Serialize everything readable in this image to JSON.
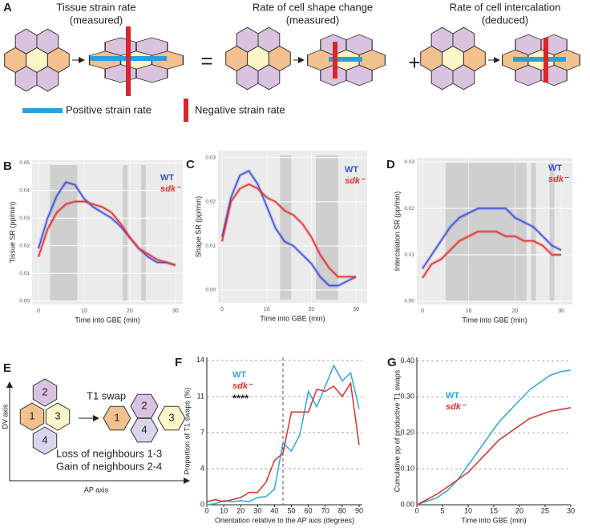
{
  "panel_A": {
    "label": "A",
    "tissue": [
      "Tissue strain rate",
      "(measured)"
    ],
    "shape": [
      "Rate of cell shape change",
      "(measured)"
    ],
    "intercalation": [
      "Rate of cell intercalation",
      "(deduced)"
    ],
    "equals": "=",
    "plus": "+",
    "positive": "Positive strain rate",
    "negative": "Negative strain rate"
  },
  "panel_E": {
    "label": "E",
    "t1": "T1 swap",
    "dv": "DV axis",
    "ap": "AP axis",
    "loss": "Loss of neighbours 1-3",
    "gain": "Gain of neighbours 2-4",
    "cells": [
      "1",
      "2",
      "3",
      "4"
    ]
  },
  "chart_data": [
    {
      "type": "line",
      "label": "B",
      "ylabel": "Tissue SR (pp/min)",
      "xlabel": "Time into GBE (min)",
      "x": [
        0,
        2,
        4,
        6,
        8,
        10,
        12,
        14,
        16,
        18,
        20,
        22,
        24,
        26,
        28,
        30
      ],
      "series": [
        {
          "name": "WT",
          "color": "#3b4fe0",
          "values": [
            0.019,
            0.03,
            0.038,
            0.043,
            0.042,
            0.037,
            0.034,
            0.032,
            0.03,
            0.027,
            0.023,
            0.019,
            0.016,
            0.014,
            0.014,
            0.013
          ]
        },
        {
          "name": "sdk⁻",
          "color": "#e5302b",
          "values": [
            0.016,
            0.026,
            0.032,
            0.035,
            0.036,
            0.036,
            0.035,
            0.034,
            0.032,
            0.028,
            0.023,
            0.019,
            0.017,
            0.015,
            0.014,
            0.013
          ]
        }
      ],
      "xlim": [
        -1.4,
        31.6
      ],
      "ylim": [
        -0.0012,
        0.0509
      ],
      "xticks": [
        0,
        10,
        20,
        30
      ],
      "yticks": [
        {
          "value": 0,
          "label": "0.00"
        },
        {
          "value": 0.01,
          "label": "0.01"
        },
        {
          "value": 0.02,
          "label": "0.02"
        },
        {
          "value": 0.03,
          "label": "0.03"
        },
        {
          "value": 0.04,
          "label": "0.04"
        },
        {
          "value": 0.05,
          "label": "0.05"
        }
      ],
      "shaded_regions": [
        [
          2.5,
          8.5
        ],
        [
          18.5,
          19.5
        ],
        [
          22.5,
          23.5
        ]
      ],
      "grid": true
    },
    {
      "type": "line",
      "label": "C",
      "ylabel": "Shape SR (pp/min)",
      "xlabel": "Time into GBE (min)",
      "x": [
        0,
        2,
        4,
        6,
        8,
        10,
        12,
        14,
        16,
        18,
        20,
        22,
        24,
        26,
        28,
        30
      ],
      "series": [
        {
          "name": "WT",
          "color": "#3b4fe0",
          "values": [
            0.012,
            0.021,
            0.026,
            0.027,
            0.024,
            0.019,
            0.014,
            0.011,
            0.01,
            0.008,
            0.006,
            0.003,
            0.001,
            0.001,
            0.002,
            0.003
          ]
        },
        {
          "name": "sdk⁻",
          "color": "#e5302b",
          "values": [
            0.011,
            0.02,
            0.023,
            0.024,
            0.023,
            0.021,
            0.02,
            0.018,
            0.017,
            0.015,
            0.012,
            0.008,
            0.005,
            0.003,
            0.003,
            0.003
          ]
        }
      ],
      "xlim": [
        -0.9,
        32.5
      ],
      "ylim": [
        -0.0029,
        0.0316
      ],
      "xticks": [
        0,
        10,
        20,
        30
      ],
      "yticks": [
        {
          "value": 0,
          "label": "0.00"
        },
        {
          "value": 0.01,
          "label": "0.01"
        },
        {
          "value": 0.02,
          "label": "0.02"
        },
        {
          "value": 0.03,
          "label": "0.03"
        }
      ],
      "shaded_regions": [
        [
          13,
          15.5
        ],
        [
          21,
          26
        ]
      ],
      "grid": true
    },
    {
      "type": "line",
      "label": "D",
      "ylabel": "Intercalation SR (pp/min)",
      "xlabel": "Time into GBE (min)",
      "x": [
        0,
        2,
        4,
        6,
        8,
        10,
        12,
        14,
        16,
        18,
        20,
        22,
        24,
        26,
        28,
        30
      ],
      "series": [
        {
          "name": "WT",
          "color": "#3b4fe0",
          "values": [
            0.007,
            0.01,
            0.013,
            0.016,
            0.018,
            0.019,
            0.02,
            0.02,
            0.02,
            0.02,
            0.018,
            0.017,
            0.016,
            0.014,
            0.012,
            0.011
          ]
        },
        {
          "name": "sdk⁻",
          "color": "#e5302b",
          "values": [
            0.005,
            0.008,
            0.009,
            0.011,
            0.013,
            0.014,
            0.015,
            0.015,
            0.015,
            0.014,
            0.014,
            0.013,
            0.013,
            0.012,
            0.01,
            0.01
          ]
        }
      ],
      "xlim": [
        -1.2,
        32.4
      ],
      "ylim": [
        -0.0007,
        0.0309
      ],
      "xticks": [
        0,
        10,
        20,
        30
      ],
      "yticks": [
        {
          "value": 0,
          "label": "0.00"
        },
        {
          "value": 0.01,
          "label": "0.01"
        },
        {
          "value": 0.02,
          "label": "0.02"
        },
        {
          "value": 0.03,
          "label": "0.03"
        }
      ],
      "shaded_regions": [
        [
          5,
          22.5
        ],
        [
          23.5,
          24.5
        ],
        [
          27.5,
          28.5
        ]
      ],
      "grid": true
    },
    {
      "type": "line",
      "label": "F",
      "ylabel": "Proportion of T1 swaps  (%)",
      "xlabel": "Orientation  relative to the AP axis (degrees)",
      "x": [
        0,
        5,
        10,
        15,
        20,
        25,
        30,
        35,
        40,
        45,
        50,
        55,
        60,
        65,
        70,
        75,
        80,
        85,
        90
      ],
      "series": [
        {
          "name": "WT",
          "color": "#2aa7e0",
          "values": [
            0,
            0.1,
            0.4,
            0.3,
            0.4,
            0.3,
            0.7,
            0.8,
            1.5,
            6.0,
            5.2,
            6.8,
            11,
            9.5,
            11.5,
            13.5,
            12,
            12.8,
            9.3
          ]
        },
        {
          "name": "sdk⁻",
          "color": "#d8312b",
          "values": [
            0.3,
            0.5,
            0.3,
            0.5,
            0.7,
            1.2,
            1.2,
            2.2,
            4.3,
            5,
            9,
            9,
            9,
            11.2,
            11,
            11.5,
            10.5,
            11.8,
            5.8
          ]
        }
      ],
      "annotation": "****",
      "vline": 45,
      "xlim": [
        0,
        91.9
      ],
      "ylim": [
        0,
        14.3
      ],
      "xticks": [
        0,
        10,
        20,
        30,
        40,
        50,
        60,
        70,
        80,
        90
      ],
      "yticks": [
        0,
        {
          "value": 3.5,
          "label": "4"
        },
        7,
        {
          "value": 10.5,
          "label": "11"
        },
        14
      ],
      "grid": true
    },
    {
      "type": "line",
      "label": "G",
      "ylabel": "Cumulative pp of productive T1 swaps",
      "xlabel": "Time into GBE (min)",
      "x": [
        0,
        2,
        4,
        6,
        8,
        10,
        12,
        14,
        16,
        18,
        20,
        22,
        24,
        26,
        28,
        30
      ],
      "series": [
        {
          "name": "WT",
          "color": "#2aa7e0",
          "values": [
            0,
            0.01,
            0.02,
            0.04,
            0.07,
            0.11,
            0.15,
            0.19,
            0.23,
            0.26,
            0.29,
            0.32,
            0.34,
            0.36,
            0.37,
            0.375
          ]
        },
        {
          "name": "sdk⁻",
          "color": "#d8312b",
          "values": [
            0,
            0.015,
            0.03,
            0.05,
            0.07,
            0.09,
            0.12,
            0.15,
            0.18,
            0.2,
            0.22,
            0.24,
            0.25,
            0.26,
            0.265,
            0.27
          ]
        }
      ],
      "xlim": [
        0,
        30
      ],
      "ylim": [
        0,
        0.41
      ],
      "xticks": [
        0,
        5,
        10,
        15,
        20,
        25,
        30
      ],
      "yticks": [
        {
          "value": 0,
          "label": "0.00"
        },
        {
          "value": 0.1,
          "label": "0.10"
        },
        {
          "value": 0.2,
          "label": "0.20"
        },
        {
          "value": 0.3,
          "label": "0.30"
        },
        {
          "value": 0.4,
          "label": "0.40"
        }
      ],
      "grid": true
    }
  ]
}
